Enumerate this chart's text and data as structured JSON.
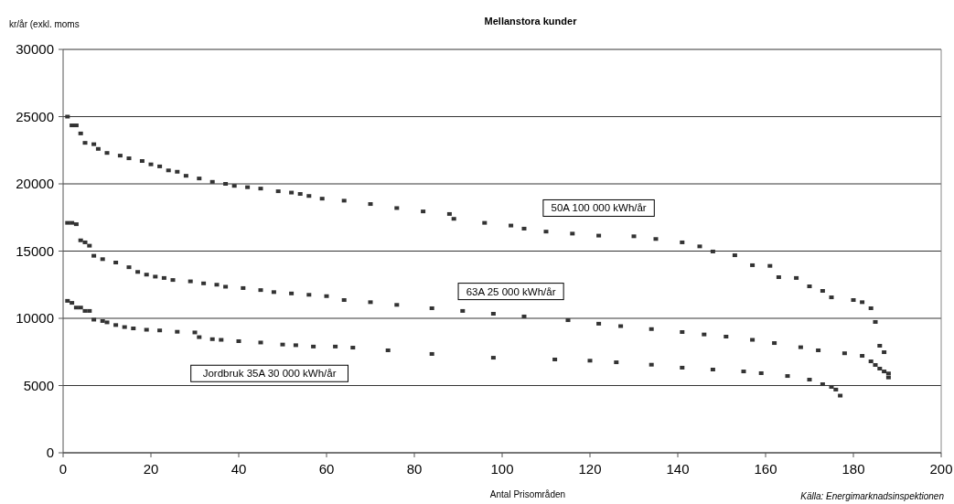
{
  "chart_data": {
    "type": "scatter",
    "title": "Mellanstora kunder",
    "ylabel": "kr/år (exkl. moms",
    "xlabel": "Antal Prisområden",
    "annotations": [
      "Källa: Energimarknadsinspektionen"
    ],
    "xlim": [
      0,
      200
    ],
    "xticks": [
      0,
      20,
      40,
      60,
      80,
      100,
      120,
      140,
      160,
      180,
      200
    ],
    "ylim": [
      0,
      30000
    ],
    "yticks": [
      0,
      5000,
      10000,
      15000,
      20000,
      25000,
      30000
    ],
    "grid": "y",
    "marker": "square",
    "series": [
      {
        "name": "50A 100 000 kWh/år",
        "color": "#333333",
        "x": [
          1,
          2,
          3,
          4,
          5,
          7,
          8,
          10,
          13,
          15,
          18,
          20,
          22,
          24,
          26,
          28,
          31,
          34,
          37,
          39,
          42,
          45,
          49,
          52,
          54,
          56,
          59,
          64,
          70,
          76,
          82,
          88,
          89,
          96,
          102,
          105,
          110,
          116,
          122,
          130,
          135,
          141,
          145,
          148,
          153,
          157,
          161,
          163,
          167,
          170,
          173,
          175,
          180,
          182,
          184,
          185,
          186,
          187,
          188
        ],
        "values": [
          25000,
          24350,
          24350,
          23750,
          23050,
          22950,
          22600,
          22300,
          22100,
          21900,
          21700,
          21450,
          21300,
          21000,
          20900,
          20600,
          20400,
          20150,
          20000,
          19850,
          19750,
          19650,
          19450,
          19350,
          19250,
          19100,
          18900,
          18750,
          18500,
          18200,
          17950,
          17760,
          17400,
          17100,
          16900,
          16670,
          16450,
          16300,
          16150,
          16100,
          15900,
          15650,
          15350,
          14970,
          14690,
          13950,
          13900,
          13060,
          13000,
          12380,
          12040,
          11560,
          11360,
          11200,
          10750,
          9730,
          7960,
          7480,
          5600
        ]
      },
      {
        "name": "63A 25 000 kWh/år",
        "color": "#333333",
        "x": [
          1,
          2,
          3,
          4,
          5,
          6,
          7,
          9,
          12,
          15,
          17,
          19,
          21,
          23,
          25,
          29,
          32,
          35,
          37,
          41,
          45,
          48,
          52,
          56,
          60,
          64,
          70,
          76,
          84,
          91,
          98,
          105,
          115,
          122,
          127,
          134,
          141,
          146,
          151,
          157,
          162,
          168,
          172,
          178,
          182,
          184,
          185,
          186,
          187,
          188
        ],
        "values": [
          17100,
          17100,
          17000,
          15800,
          15650,
          15400,
          14650,
          14400,
          14150,
          13800,
          13450,
          13250,
          13100,
          13000,
          12850,
          12750,
          12600,
          12500,
          12350,
          12250,
          12100,
          11950,
          11850,
          11750,
          11650,
          11360,
          11200,
          11000,
          10750,
          10550,
          10340,
          10140,
          9860,
          9600,
          9420,
          9200,
          8980,
          8800,
          8640,
          8400,
          8160,
          7850,
          7620,
          7400,
          7210,
          6800,
          6530,
          6260,
          6050,
          5900
        ]
      },
      {
        "name": "Jordbruk 35A 30 000 kWh/år",
        "color": "#333333",
        "x": [
          1,
          2,
          3,
          4,
          5,
          6,
          7,
          9,
          10,
          12,
          14,
          16,
          19,
          22,
          26,
          30,
          31,
          34,
          36,
          40,
          45,
          50,
          53,
          57,
          62,
          66,
          74,
          84,
          98,
          112,
          120,
          126,
          134,
          141,
          148,
          155,
          159,
          165,
          170,
          173,
          175,
          176,
          177
        ],
        "values": [
          11300,
          11150,
          10800,
          10800,
          10550,
          10550,
          9900,
          9800,
          9700,
          9500,
          9350,
          9250,
          9150,
          9100,
          9000,
          8950,
          8600,
          8450,
          8400,
          8300,
          8200,
          8050,
          8000,
          7900,
          7900,
          7820,
          7620,
          7350,
          7070,
          6940,
          6850,
          6730,
          6550,
          6330,
          6190,
          6050,
          5920,
          5710,
          5440,
          5100,
          4900,
          4700,
          4250
        ]
      }
    ]
  }
}
